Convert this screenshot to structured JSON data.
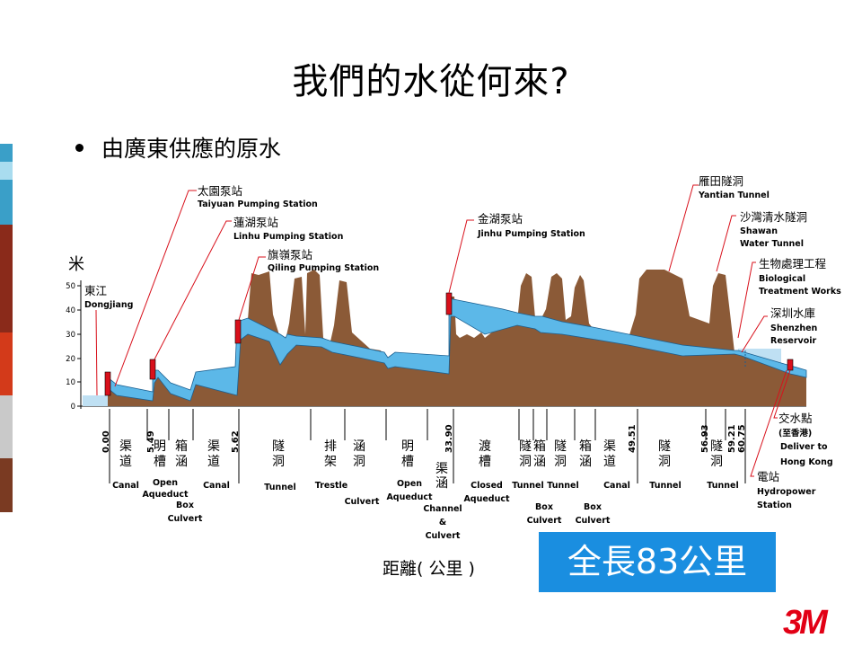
{
  "title": "我們的水從何來?",
  "bullet": "由廣東供應的原水",
  "y_axis": {
    "unit": "米",
    "ticks": [
      "50",
      "40",
      "30",
      "20",
      "10",
      "0"
    ]
  },
  "stations": [
    {
      "cn": "東江",
      "en": "Dongjiang"
    },
    {
      "cn": "太園泵站",
      "en": "Taiyuan Pumping Station"
    },
    {
      "cn": "蓮湖泵站",
      "en": "Linhu Pumping Station"
    },
    {
      "cn": "旗嶺泵站",
      "en": "Qiling Pumping Station"
    },
    {
      "cn": "金湖泵站",
      "en": "Jinhu Pumping Station"
    },
    {
      "cn": "雁田隧洞",
      "en": "Yantian Tunnel"
    },
    {
      "cn": "沙灣清水隧洞",
      "en1": "Shawan",
      "en2": "Water Tunnel"
    },
    {
      "cn": "生物處理工程",
      "en1": "Biological",
      "en2": "Treatment Works"
    },
    {
      "cn": "深圳水庫",
      "en1": "Shenzhen",
      "en2": "Reservoir"
    },
    {
      "cn": "交水點",
      "cn2": "(至香港)",
      "en1": "Deliver to",
      "en2": "Hong Kong"
    },
    {
      "cn": "電站",
      "en1": "Hydropower",
      "en2": "Station"
    }
  ],
  "km_marks": [
    "0.00",
    "5.49",
    "5.62",
    "33.90",
    "49.51",
    "56.93",
    "59.21",
    "60.75"
  ],
  "segments": [
    {
      "cn": "渠道",
      "en": [
        "Canal"
      ]
    },
    {
      "cn": "明槽",
      "en": [
        "Open",
        "Aqueduct"
      ]
    },
    {
      "cn": "箱涵",
      "en": [
        "Box",
        "Culvert"
      ]
    },
    {
      "cn": "渠道",
      "en": [
        "Canal"
      ]
    },
    {
      "cn": "隧洞",
      "en": [
        "Tunnel"
      ]
    },
    {
      "cn": "排架",
      "en": [
        "Trestle"
      ]
    },
    {
      "cn": "涵洞",
      "en": [
        "Culvert"
      ]
    },
    {
      "cn": "明槽",
      "en": [
        "Open",
        "Aqueduct"
      ]
    },
    {
      "cn": "渠涵",
      "en": [
        "Channel",
        "&",
        "Culvert"
      ]
    },
    {
      "cn": "渡槽",
      "en": [
        "Closed",
        "Aqueduct"
      ]
    },
    {
      "cn": "隧洞",
      "en": [
        "Tunnel"
      ]
    },
    {
      "cn": "箱涵",
      "en": [
        "Box",
        "Culvert"
      ]
    },
    {
      "cn": "隧洞",
      "en": [
        "Tunnel"
      ]
    },
    {
      "cn": "箱涵",
      "en": [
        "Box",
        "Culvert"
      ]
    },
    {
      "cn": "渠道",
      "en": [
        "Canal"
      ]
    },
    {
      "cn": "隧洞",
      "en": [
        "Tunnel"
      ]
    },
    {
      "cn": "隧洞",
      "en": [
        "Tunnel"
      ]
    }
  ],
  "distance_label": "距離( 公里 )",
  "total_label": "全長83公里",
  "logo_text": "3M",
  "colors": {
    "terrain": "#8b5a37",
    "water": "#5cb8e8",
    "station": "#d8101b",
    "box": "#1a8ee0",
    "logo": "#e20015"
  }
}
